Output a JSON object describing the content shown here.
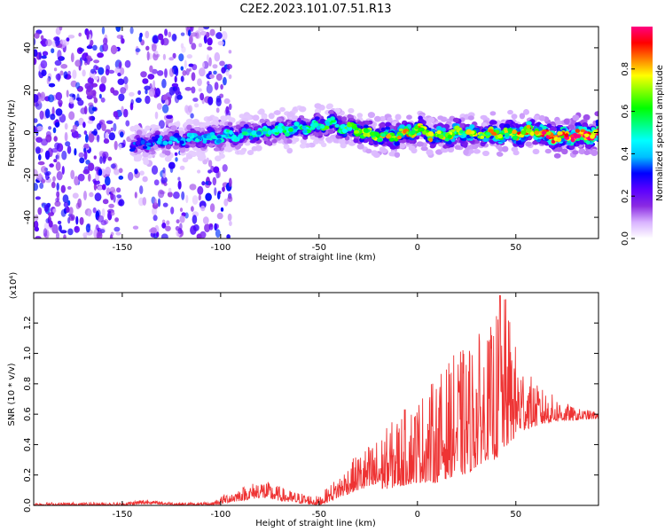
{
  "figure": {
    "title": "C2E2.2023.101.07.51.R13"
  },
  "chart_data": [
    {
      "type": "heatmap",
      "xlabel": "Height of straight line (km)",
      "ylabel": "Frequency (Hz)",
      "xlim": [
        -195,
        92
      ],
      "ylim": [
        -50,
        50
      ],
      "xticks": [
        -150,
        -100,
        -50,
        0,
        50
      ],
      "yticks": [
        -40,
        -20,
        0,
        20,
        40
      ],
      "colorbar": {
        "label": "Normalized spectral amplitude",
        "range": [
          0,
          1
        ],
        "ticks": [
          "0.0",
          "0.2",
          "0.4",
          "0.6",
          "0.8"
        ],
        "colormap": [
          "#ffffff",
          "#d9b3ff",
          "#8a2be2",
          "#5a00ff",
          "#0000ff",
          "#00bfff",
          "#00ffff",
          "#00ff80",
          "#00ff00",
          "#80ff00",
          "#ffff00",
          "#ff8000",
          "#ff0000",
          "#ff0080"
        ]
      },
      "ridge": {
        "x": [
          -145,
          -130,
          -115,
          -100,
          -90,
          -80,
          -70,
          -60,
          -50,
          -45,
          -40,
          -35,
          -30,
          -25,
          -20,
          -15,
          -10,
          -5,
          0,
          5,
          10,
          15,
          20,
          25,
          30,
          35,
          40,
          45,
          50,
          55,
          60,
          65,
          70,
          75,
          80,
          85,
          90
        ],
        "freq": [
          -6,
          -4,
          -3,
          -2,
          -1,
          0,
          1,
          2,
          3,
          5,
          3,
          2,
          1,
          -1,
          -1,
          -2,
          -1,
          0,
          2,
          0,
          -2,
          -1,
          0,
          0,
          -1,
          0,
          -1,
          0,
          -1,
          0,
          1,
          -1,
          -2,
          -2,
          -1,
          -1,
          -1
        ],
        "amplitude": [
          0.3,
          0.35,
          0.4,
          0.45,
          0.45,
          0.5,
          0.5,
          0.5,
          0.55,
          0.55,
          0.55,
          0.6,
          0.6,
          0.65,
          0.7,
          0.7,
          0.7,
          0.75,
          0.75,
          0.7,
          0.7,
          0.7,
          0.7,
          0.7,
          0.7,
          0.7,
          0.75,
          0.75,
          0.75,
          0.8,
          0.8,
          0.85,
          0.9,
          0.9,
          0.95,
          0.95,
          1.0
        ]
      },
      "noise_region_km": [
        -195,
        -105
      ]
    },
    {
      "type": "line",
      "xlabel": "Height of straight line (km)",
      "ylabel": "SNR (10 * v/v)",
      "y_scale_label": "(x10⁴)",
      "xlim": [
        -195,
        92
      ],
      "ylim": [
        0,
        1.4
      ],
      "xticks": [
        -150,
        -100,
        -50,
        0,
        50
      ],
      "yticks": [
        "0.0",
        "0.2",
        "0.4",
        "0.6",
        "0.8",
        "1.0",
        "1.2"
      ],
      "color": "#ee3333",
      "envelope": {
        "x": [
          -195,
          -150,
          -136,
          -134,
          -120,
          -105,
          -95,
          -85,
          -80,
          -75,
          -65,
          -50,
          -40,
          -30,
          -20,
          -10,
          0,
          10,
          20,
          25,
          30,
          35,
          40,
          45,
          50,
          55,
          60,
          70,
          80,
          92
        ],
        "low": [
          0.0,
          0.0,
          0.01,
          0.01,
          0.0,
          0.0,
          0.02,
          0.04,
          0.05,
          0.04,
          0.02,
          0.0,
          0.05,
          0.1,
          0.1,
          0.12,
          0.15,
          0.15,
          0.2,
          0.2,
          0.25,
          0.3,
          0.3,
          0.38,
          0.45,
          0.5,
          0.52,
          0.55,
          0.56,
          0.57
        ],
        "high": [
          0.02,
          0.02,
          0.05,
          0.03,
          0.02,
          0.02,
          0.1,
          0.14,
          0.18,
          0.15,
          0.1,
          0.06,
          0.2,
          0.35,
          0.45,
          0.6,
          0.72,
          0.85,
          1.02,
          1.05,
          1.15,
          1.1,
          1.28,
          1.38,
          1.05,
          0.92,
          0.8,
          0.72,
          0.64,
          0.62
        ]
      },
      "peak": {
        "x": 42,
        "y": 1.38
      }
    }
  ]
}
